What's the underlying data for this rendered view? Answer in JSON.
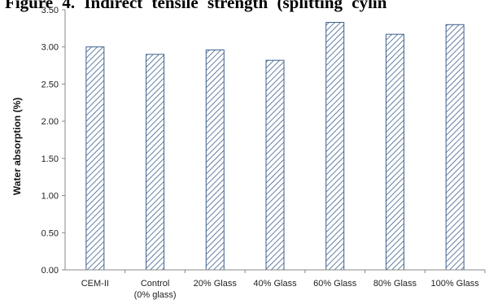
{
  "caption_fragment": "Figure 4. Indirect tensile strength (splitting cylin",
  "chart_data": {
    "type": "bar",
    "title": "",
    "xlabel": "",
    "ylabel": "Water absorption (%)",
    "ylim": [
      0,
      3.5
    ],
    "ytick_step": 0.5,
    "ytick_labels": [
      "0.00",
      "0.50",
      "1.00",
      "1.50",
      "2.00",
      "2.50",
      "3.00",
      "3.50"
    ],
    "categories": [
      [
        "CEM-II"
      ],
      [
        "Control",
        "(0% glass)"
      ],
      [
        "20% Glass"
      ],
      [
        "40% Glass"
      ],
      [
        "60% Glass"
      ],
      [
        "80% Glass"
      ],
      [
        "100% Glass"
      ]
    ],
    "values": [
      3.0,
      2.9,
      2.96,
      2.82,
      3.33,
      3.17,
      3.3
    ],
    "bar_fill": "diagonal-hatch",
    "bar_color": "#3d5f8c",
    "grid": false,
    "legend": "none"
  }
}
